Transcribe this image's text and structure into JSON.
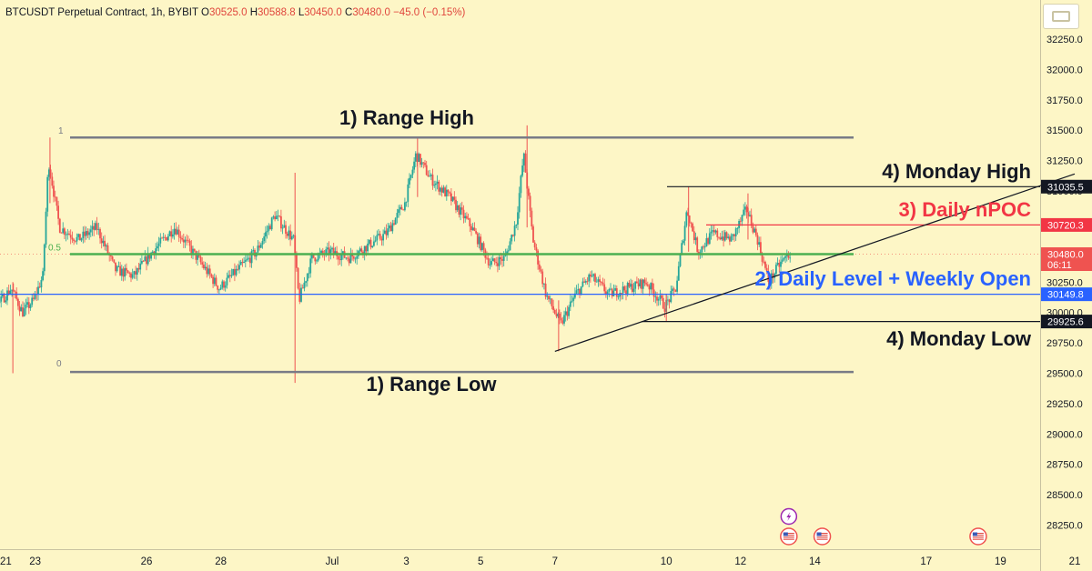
{
  "header": {
    "symbol": "BTCUSDT Perpetual Contract, 1h, BYBIT",
    "o_label": "O",
    "o_value": "30525.0",
    "h_label": "H",
    "h_value": "30588.8",
    "l_label": "L",
    "l_value": "30450.0",
    "c_label": "C",
    "c_value": "30480.0",
    "change": "−45.0 (−0.15%)"
  },
  "colors": {
    "background": "#fdf6c6",
    "up": "#26a69a",
    "down": "#ef5350",
    "range_line": "#787b86",
    "daily_level": "#2962ff",
    "mid_level": "#4caf50",
    "npoc": "#f23645",
    "annotation_text_dark": "#131722",
    "annotation_text_blue": "#2962ff",
    "annotation_text_red": "#f23645"
  },
  "annotations": {
    "range_high": "1) Range High",
    "range_low": "1) Range Low",
    "monday_high": "4) Monday High",
    "monday_low": "4) Monday Low",
    "daily_npoc": "3) Daily nPOC",
    "daily_level": "2) Daily Level + Weekly Open",
    "fib_1": "1",
    "fib_05": "0.5",
    "fib_0": "0"
  },
  "icons": {
    "lightning": "lightning-icon",
    "flag": "us-flag-icon"
  },
  "chart_data": {
    "type": "candlestick",
    "symbol": "BTCUSDT",
    "interval": "1h",
    "exchange": "BYBIT",
    "ylim": [
      28070,
      32450
    ],
    "y_ticks": [
      28250,
      28500,
      28750,
      29000,
      29250,
      29500,
      29750,
      30000,
      30250,
      30500,
      30750,
      31000,
      31250,
      31500,
      31750,
      32000,
      32250
    ],
    "y_tick_labels": [
      "28250.0",
      "28500.0",
      "28750.0",
      "29000.0",
      "29250.0",
      "29500.0",
      "29750.0",
      "30000.0",
      "30250.0",
      "30500.0",
      "30750.0",
      "31000.0",
      "31250.0",
      "31500.0",
      "31750.0",
      "32000.0",
      "32250.0"
    ],
    "x_ticks": [
      {
        "label": "21",
        "day": -9
      },
      {
        "label": "23",
        "day": -7
      },
      {
        "label": "26",
        "day": -4
      },
      {
        "label": "28",
        "day": -2
      },
      {
        "label": "Jul",
        "day": 1
      },
      {
        "label": "3",
        "day": 3
      },
      {
        "label": "5",
        "day": 5
      },
      {
        "label": "7",
        "day": 7
      },
      {
        "label": "10",
        "day": 10
      },
      {
        "label": "12",
        "day": 12
      },
      {
        "label": "14",
        "day": 14
      },
      {
        "label": "17",
        "day": 17
      },
      {
        "label": "19",
        "day": 19
      },
      {
        "label": "21",
        "day": 21
      }
    ],
    "price_badges": [
      {
        "value": "31035.5",
        "price": 31035.5,
        "style": "black"
      },
      {
        "value": "30720.3",
        "price": 30720.3,
        "style": "red"
      },
      {
        "value": "30480.0",
        "price": 30480.0,
        "style": "last",
        "countdown": "06:11"
      },
      {
        "value": "30149.8",
        "price": 30149.8,
        "style": "blue"
      },
      {
        "value": "29925.6",
        "price": 29925.6,
        "style": "black"
      }
    ],
    "levels": {
      "range_high": 31440,
      "range_low": 29510,
      "mid_level": 30480,
      "daily_level": 30149.8,
      "monday_high": 31035.5,
      "monday_low": 29925.6,
      "daily_npoc": 30720.3
    },
    "trendline": {
      "start": {
        "day": 7.0,
        "price": 29680
      },
      "end": {
        "day": 21.0,
        "price": 31140
      }
    },
    "keypoints": [
      {
        "day": -9.25,
        "price": 28700
      },
      {
        "day": -8.9,
        "price": 28950
      },
      {
        "day": -8.6,
        "price": 29600
      },
      {
        "day": -8.3,
        "price": 30150
      },
      {
        "day": -8.0,
        "price": 30050
      },
      {
        "day": -7.6,
        "price": 30200
      },
      {
        "day": -7.3,
        "price": 30000
      },
      {
        "day": -7.0,
        "price": 30100
      },
      {
        "day": -6.75,
        "price": 30300
      },
      {
        "day": -6.6,
        "price": 31250
      },
      {
        "day": -6.3,
        "price": 30700
      },
      {
        "day": -5.8,
        "price": 30600
      },
      {
        "day": -5.3,
        "price": 30700
      },
      {
        "day": -4.8,
        "price": 30350
      },
      {
        "day": -4.3,
        "price": 30300
      },
      {
        "day": -3.8,
        "price": 30500
      },
      {
        "day": -3.2,
        "price": 30700
      },
      {
        "day": -2.6,
        "price": 30450
      },
      {
        "day": -2.0,
        "price": 30200
      },
      {
        "day": -1.5,
        "price": 30350
      },
      {
        "day": -1.0,
        "price": 30500
      },
      {
        "day": -0.5,
        "price": 30800
      },
      {
        "day": 0.0,
        "price": 30600
      },
      {
        "day": 0.15,
        "price": 30100
      },
      {
        "day": 0.5,
        "price": 30450
      },
      {
        "day": 1.0,
        "price": 30500
      },
      {
        "day": 1.5,
        "price": 30450
      },
      {
        "day": 2.0,
        "price": 30550
      },
      {
        "day": 2.5,
        "price": 30650
      },
      {
        "day": 3.0,
        "price": 30900
      },
      {
        "day": 3.3,
        "price": 31300
      },
      {
        "day": 3.7,
        "price": 31100
      },
      {
        "day": 4.2,
        "price": 30950
      },
      {
        "day": 4.8,
        "price": 30700
      },
      {
        "day": 5.3,
        "price": 30400
      },
      {
        "day": 5.7,
        "price": 30450
      },
      {
        "day": 6.0,
        "price": 30750
      },
      {
        "day": 6.2,
        "price": 31300
      },
      {
        "day": 6.45,
        "price": 30600
      },
      {
        "day": 6.8,
        "price": 30150
      },
      {
        "day": 7.2,
        "price": 29900
      },
      {
        "day": 7.6,
        "price": 30150
      },
      {
        "day": 8.0,
        "price": 30300
      },
      {
        "day": 8.5,
        "price": 30150
      },
      {
        "day": 9.0,
        "price": 30200
      },
      {
        "day": 9.5,
        "price": 30250
      },
      {
        "day": 10.0,
        "price": 30050
      },
      {
        "day": 10.3,
        "price": 30200
      },
      {
        "day": 10.6,
        "price": 30850
      },
      {
        "day": 10.9,
        "price": 30500
      },
      {
        "day": 11.3,
        "price": 30650
      },
      {
        "day": 11.8,
        "price": 30600
      },
      {
        "day": 12.2,
        "price": 30850
      },
      {
        "day": 12.5,
        "price": 30600
      },
      {
        "day": 12.8,
        "price": 30250
      },
      {
        "day": 13.1,
        "price": 30400
      },
      {
        "day": 13.35,
        "price": 30480
      }
    ],
    "event_markers": [
      {
        "day": 13.3,
        "icon": "lightning-icon",
        "row": 0
      },
      {
        "day": 13.3,
        "icon": "us-flag-icon",
        "row": 1
      },
      {
        "day": 14.2,
        "icon": "us-flag-icon",
        "row": 1
      },
      {
        "day": 18.4,
        "icon": "us-flag-icon",
        "row": 1
      }
    ]
  }
}
